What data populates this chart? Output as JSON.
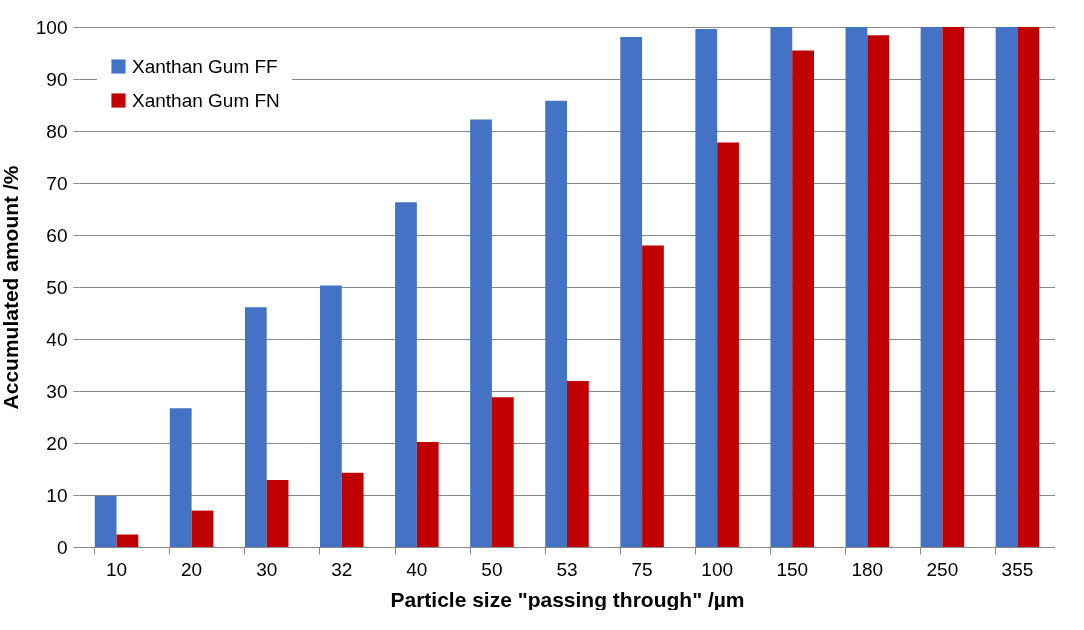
{
  "chart_data": {
    "type": "bar",
    "xlabel": "Particle size \"passing through\" /µm",
    "ylabel": "Accumulated amount /%",
    "categories": [
      "10",
      "20",
      "30",
      "32",
      "40",
      "50",
      "53",
      "75",
      "100",
      "150",
      "180",
      "250",
      "355"
    ],
    "series": [
      {
        "name": "Xanthan Gum FF",
        "color": "#4472c4",
        "values": [
          9.8,
          26.7,
          46.1,
          50.3,
          66.3,
          82.2,
          85.8,
          98.1,
          99.6,
          100,
          100,
          100,
          100
        ]
      },
      {
        "name": "Xanthan Gum FN",
        "color": "#c00000",
        "values": [
          2.4,
          7.0,
          12.9,
          14.3,
          20.2,
          28.8,
          31.9,
          58.0,
          77.8,
          95.5,
          98.4,
          100,
          100
        ]
      }
    ],
    "ylim": [
      0,
      100
    ],
    "yticks": [
      0,
      10,
      20,
      30,
      40,
      50,
      60,
      70,
      80,
      90,
      100
    ],
    "grid": "y",
    "legend": "top left"
  }
}
